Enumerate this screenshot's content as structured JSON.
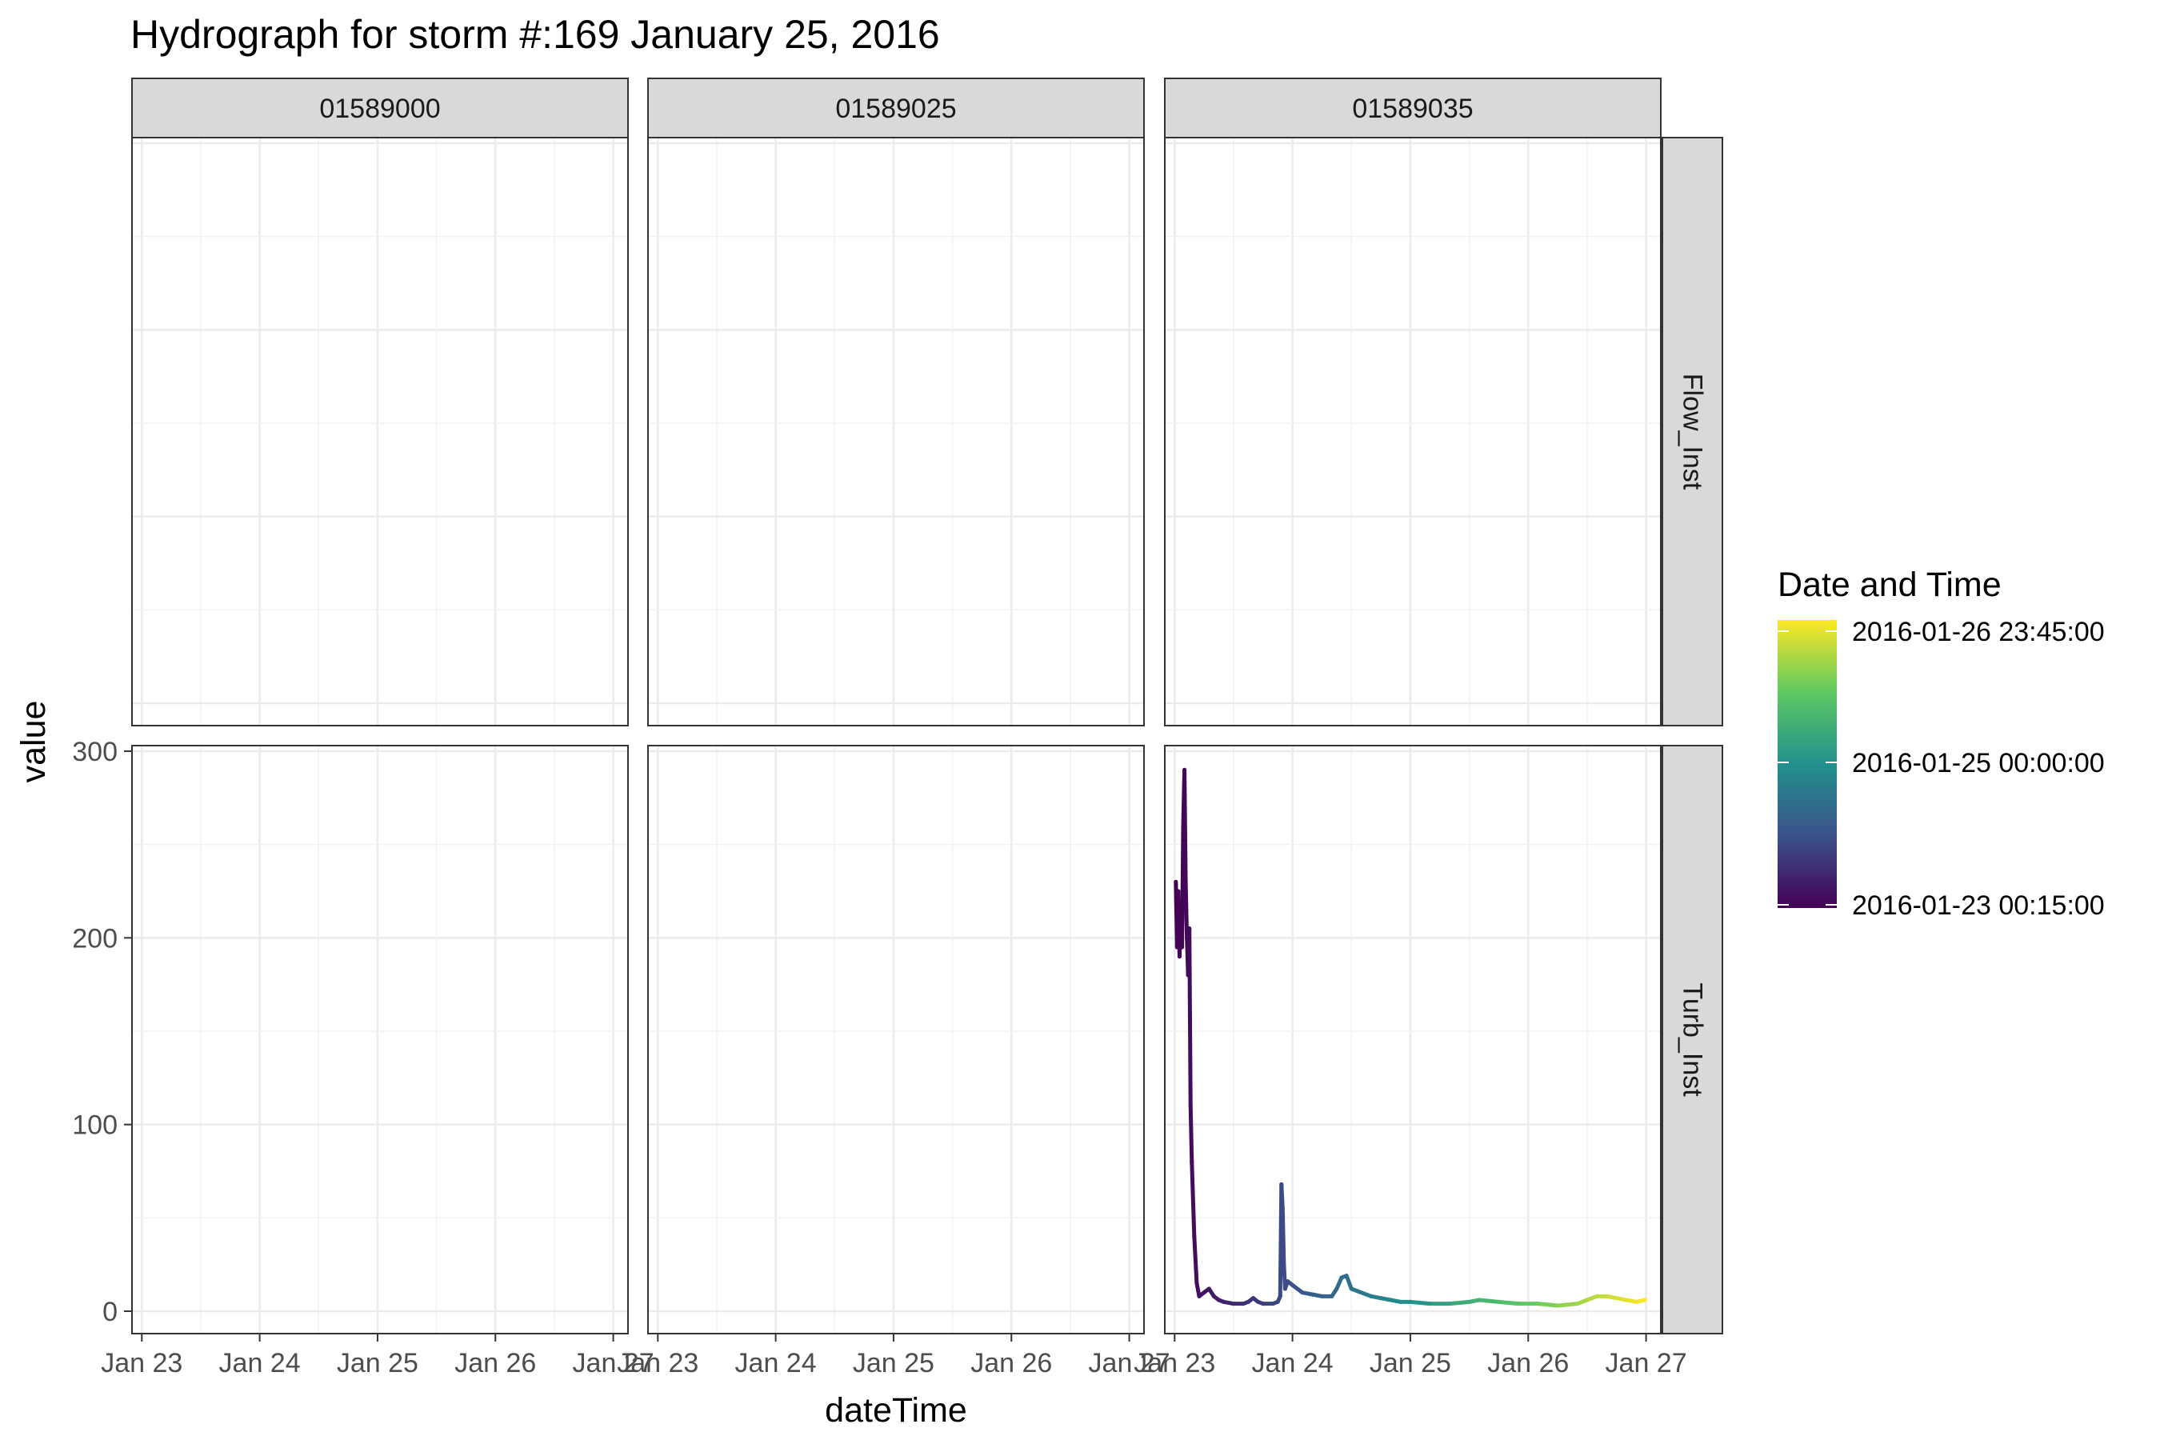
{
  "chart_data": {
    "type": "line",
    "title": "Hydrograph for storm #:169   January 25, 2016",
    "xlabel": "dateTime",
    "ylabel": "value",
    "x_range": [
      "2016-01-22 22:00",
      "2016-01-27 03:00"
    ],
    "x_ticks": [
      "2016-01-23",
      "2016-01-24",
      "2016-01-25",
      "2016-01-26",
      "2016-01-27"
    ],
    "x_tick_labels": [
      "Jan 23",
      "Jan 24",
      "Jan 25",
      "Jan 26",
      "Jan 27"
    ],
    "ylim": [
      -12,
      303
    ],
    "y_ticks": [
      0,
      100,
      200,
      300
    ],
    "y_tick_labels": [
      "0",
      "100",
      "200",
      "300"
    ],
    "grid": true,
    "facet_columns": [
      "01589000",
      "01589025",
      "01589035"
    ],
    "facet_rows": [
      "Flow_Inst",
      "Turb_Inst"
    ],
    "legend": {
      "title": "Date and Time",
      "placement": "right",
      "type": "colorbar",
      "palette": [
        "#440154",
        "#3b528b",
        "#21918c",
        "#5ec962",
        "#fde725"
      ],
      "labels": [
        "2016-01-26 23:45:00",
        "2016-01-25 00:00:00",
        "2016-01-23 00:15:00"
      ]
    },
    "series": [
      {
        "site": "01589035",
        "parameter": "Turb_Inst",
        "points": [
          [
            "2016-01-23 00:15",
            230
          ],
          [
            "2016-01-23 00:30",
            195
          ],
          [
            "2016-01-23 00:45",
            225
          ],
          [
            "2016-01-23 01:00",
            190
          ],
          [
            "2016-01-23 01:15",
            215
          ],
          [
            "2016-01-23 01:30",
            195
          ],
          [
            "2016-01-23 01:45",
            260
          ],
          [
            "2016-01-23 02:00",
            290
          ],
          [
            "2016-01-23 02:15",
            230
          ],
          [
            "2016-01-23 02:30",
            200
          ],
          [
            "2016-01-23 02:45",
            180
          ],
          [
            "2016-01-23 03:00",
            205
          ],
          [
            "2016-01-23 03:15",
            110
          ],
          [
            "2016-01-23 03:30",
            80
          ],
          [
            "2016-01-23 04:00",
            40
          ],
          [
            "2016-01-23 04:30",
            15
          ],
          [
            "2016-01-23 05:00",
            8
          ],
          [
            "2016-01-23 06:00",
            10
          ],
          [
            "2016-01-23 07:00",
            12
          ],
          [
            "2016-01-23 08:00",
            8
          ],
          [
            "2016-01-23 09:00",
            6
          ],
          [
            "2016-01-23 10:00",
            5
          ],
          [
            "2016-01-23 12:00",
            4
          ],
          [
            "2016-01-23 14:00",
            4
          ],
          [
            "2016-01-23 15:00",
            5
          ],
          [
            "2016-01-23 16:00",
            7
          ],
          [
            "2016-01-23 17:00",
            5
          ],
          [
            "2016-01-23 18:00",
            4
          ],
          [
            "2016-01-23 20:00",
            4
          ],
          [
            "2016-01-23 21:00",
            5
          ],
          [
            "2016-01-23 21:30",
            8
          ],
          [
            "2016-01-23 21:45",
            68
          ],
          [
            "2016-01-23 22:00",
            55
          ],
          [
            "2016-01-23 22:15",
            25
          ],
          [
            "2016-01-23 22:30",
            12
          ],
          [
            "2016-01-23 23:00",
            16
          ],
          [
            "2016-01-24 00:00",
            14
          ],
          [
            "2016-01-24 02:00",
            10
          ],
          [
            "2016-01-24 04:00",
            9
          ],
          [
            "2016-01-24 06:00",
            8
          ],
          [
            "2016-01-24 08:00",
            8
          ],
          [
            "2016-01-24 09:00",
            12
          ],
          [
            "2016-01-24 10:00",
            18
          ],
          [
            "2016-01-24 11:00",
            19
          ],
          [
            "2016-01-24 12:00",
            12
          ],
          [
            "2016-01-24 14:00",
            10
          ],
          [
            "2016-01-24 16:00",
            8
          ],
          [
            "2016-01-24 18:00",
            7
          ],
          [
            "2016-01-24 20:00",
            6
          ],
          [
            "2016-01-24 22:00",
            5
          ],
          [
            "2016-01-25 00:00",
            5
          ],
          [
            "2016-01-25 04:00",
            4
          ],
          [
            "2016-01-25 08:00",
            4
          ],
          [
            "2016-01-25 12:00",
            5
          ],
          [
            "2016-01-25 14:00",
            6
          ],
          [
            "2016-01-25 18:00",
            5
          ],
          [
            "2016-01-25 22:00",
            4
          ],
          [
            "2016-01-26 02:00",
            4
          ],
          [
            "2016-01-26 06:00",
            3
          ],
          [
            "2016-01-26 10:00",
            4
          ],
          [
            "2016-01-26 12:00",
            6
          ],
          [
            "2016-01-26 14:00",
            8
          ],
          [
            "2016-01-26 16:00",
            8
          ],
          [
            "2016-01-26 18:00",
            7
          ],
          [
            "2016-01-26 20:00",
            6
          ],
          [
            "2016-01-26 22:00",
            5
          ],
          [
            "2016-01-26 23:45",
            6
          ]
        ]
      }
    ]
  }
}
